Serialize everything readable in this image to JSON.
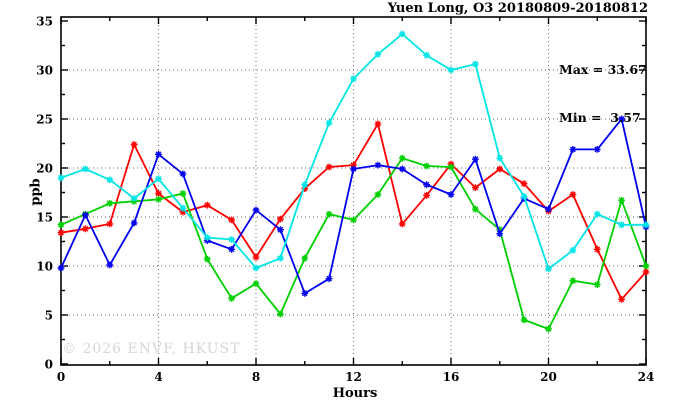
{
  "title": "Yuen Long, O3 20180809-20180812",
  "annotations": {
    "max_label": "Max = 33.67",
    "min_label": "Min =  3.57"
  },
  "watermark": "© 2026 ENVF, HKUST",
  "chart_data": {
    "type": "line",
    "title": "Yuen Long, O3 20180809-20180812",
    "xlabel": "Hours",
    "ylabel": "ppb",
    "xlim": [
      0,
      24
    ],
    "ylim": [
      0,
      35
    ],
    "x_ticks": [
      0,
      4,
      8,
      12,
      16,
      20,
      24
    ],
    "x_minor_step": 2,
    "y_ticks": [
      0,
      5,
      10,
      15,
      20,
      25,
      30,
      35
    ],
    "y_minor_step": 2.5,
    "grid": true,
    "legend": false,
    "marker": "star",
    "max": 33.67,
    "min": 3.57,
    "x": [
      0,
      1,
      2,
      3,
      4,
      5,
      6,
      7,
      8,
      9,
      10,
      11,
      12,
      13,
      14,
      15,
      16,
      17,
      18,
      19,
      20,
      21,
      22,
      23,
      24
    ],
    "series": [
      {
        "name": "red",
        "color": "#ff0000",
        "values": [
          13.4,
          13.8,
          14.3,
          22.4,
          17.4,
          15.5,
          16.2,
          14.7,
          10.9,
          14.8,
          17.9,
          20.1,
          20.3,
          24.5,
          14.3,
          17.2,
          20.4,
          18.0,
          19.9,
          18.4,
          15.6,
          17.3,
          11.7,
          6.6,
          9.4
        ]
      },
      {
        "name": "green",
        "color": "#00d000",
        "values": [
          14.2,
          15.3,
          16.4,
          16.6,
          16.8,
          17.4,
          10.7,
          6.7,
          8.2,
          5.1,
          10.8,
          15.3,
          14.7,
          17.3,
          21.0,
          20.2,
          20.1,
          15.8,
          13.7,
          4.5,
          3.57,
          8.5,
          8.1,
          16.7,
          10.0
        ]
      },
      {
        "name": "blue",
        "color": "#0000ee",
        "values": [
          9.8,
          15.2,
          10.1,
          14.4,
          21.4,
          19.4,
          12.6,
          11.7,
          15.7,
          13.7,
          7.2,
          8.7,
          19.9,
          20.3,
          19.9,
          18.3,
          17.3,
          20.9,
          13.3,
          16.9,
          15.8,
          21.9,
          21.9,
          25.0,
          14.0
        ]
      },
      {
        "name": "cyan",
        "color": "#00e5e5",
        "values": [
          19.0,
          19.9,
          18.8,
          16.9,
          18.9,
          15.9,
          12.9,
          12.7,
          9.8,
          10.8,
          18.3,
          24.6,
          29.1,
          31.6,
          33.67,
          31.5,
          30.0,
          30.6,
          21.0,
          17.1,
          9.7,
          11.6,
          15.3,
          14.2,
          14.2
        ]
      }
    ]
  },
  "style": {
    "grid_color": "#6e6e6e",
    "axis_color": "#000000",
    "background": "#ffffff"
  }
}
